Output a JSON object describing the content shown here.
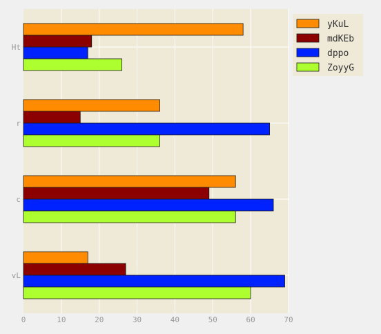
{
  "chart_data": {
    "type": "bar",
    "orientation": "horizontal",
    "categories": [
      "Ht",
      "r",
      "c",
      "vL"
    ],
    "series": [
      {
        "name": "yKuL",
        "color": "#ff8c00",
        "values": [
          58,
          36,
          56,
          17
        ]
      },
      {
        "name": "mdKEb",
        "color": "#8b0000",
        "values": [
          18,
          15,
          49,
          27
        ]
      },
      {
        "name": "dppo",
        "color": "#0022ff",
        "values": [
          17,
          65,
          66,
          69
        ]
      },
      {
        "name": "ZoyyG",
        "color": "#adff2f",
        "values": [
          26,
          36,
          56,
          60
        ]
      }
    ],
    "xlim": [
      0,
      70
    ],
    "xticks": [
      0,
      10,
      20,
      30,
      40,
      50,
      60,
      70
    ],
    "grid": true,
    "legend_position": "top-right",
    "title": "",
    "xlabel": "",
    "ylabel": ""
  },
  "colors": {
    "page_background": "#f0f0f0",
    "plot_background": "#efe9d8",
    "grid": "#ffffff",
    "bar_edge": "#1a1a1a"
  }
}
